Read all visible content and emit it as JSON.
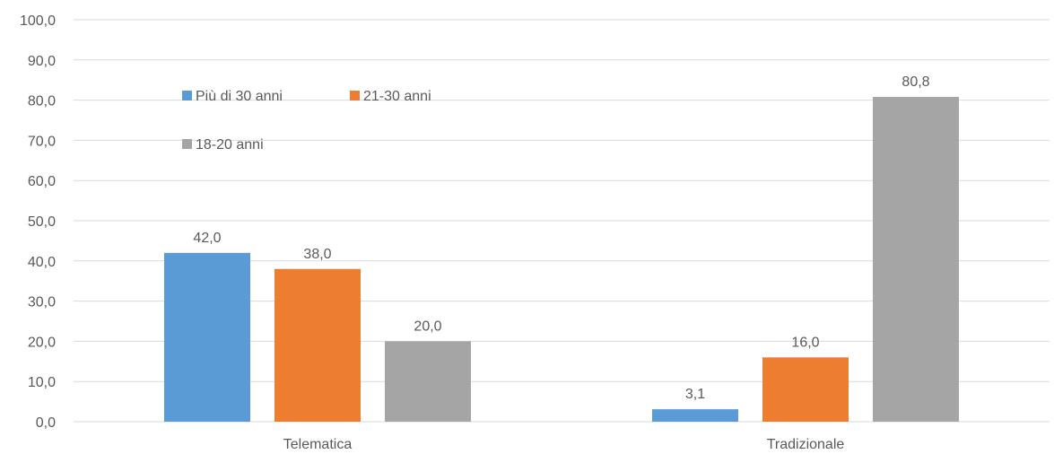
{
  "chart_data": {
    "type": "bar",
    "categories": [
      "Telematica",
      "Tradizionale"
    ],
    "series": [
      {
        "name": "Più di 30 anni",
        "color": "#5b9bd5",
        "values": [
          42.0,
          3.1
        ]
      },
      {
        "name": "21-30 anni",
        "color": "#ed7d31",
        "values": [
          38.0,
          16.0
        ]
      },
      {
        "name": "18-20 anni",
        "color": "#a5a5a5",
        "values": [
          20.0,
          80.8
        ]
      }
    ],
    "data_labels": [
      [
        "42,0",
        "3,1"
      ],
      [
        "38,0",
        "16,0"
      ],
      [
        "20,0",
        "80,8"
      ]
    ],
    "y_ticks": [
      "0,0",
      "10,0",
      "20,0",
      "30,0",
      "40,0",
      "50,0",
      "60,0",
      "70,0",
      "80,0",
      "90,0",
      "100,0"
    ],
    "ylim": [
      0,
      100
    ],
    "grid": true,
    "legend_position": "inside-top-left",
    "title": "",
    "xlabel": "",
    "ylabel": ""
  }
}
